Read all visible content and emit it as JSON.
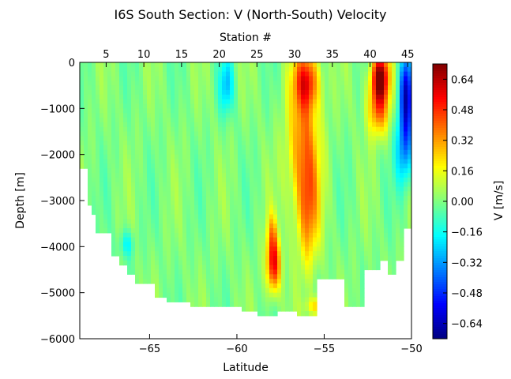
{
  "chart_data": {
    "type": "heatmap",
    "title": "I6S South Section: V (North-South) Velocity",
    "xlabel": "Latitude",
    "ylabel": "Depth [m]",
    "top_axis_label": "Station #",
    "colorbar_label": "V [m/s]",
    "xlim": [
      -69,
      -50
    ],
    "ylim": [
      -6000,
      0
    ],
    "x_ticks": [
      -65,
      -60,
      -55,
      -50
    ],
    "x_tick_labels": [
      "−65",
      "−60",
      "−55",
      "−50"
    ],
    "y_ticks": [
      0,
      -1000,
      -2000,
      -3000,
      -4000,
      -5000,
      -6000
    ],
    "y_tick_labels": [
      "0",
      "−1000",
      "−2000",
      "−3000",
      "−4000",
      "−5000",
      "−6000"
    ],
    "station_ticks": [
      5,
      10,
      15,
      20,
      25,
      30,
      35,
      40,
      45
    ],
    "station_tick_labels": [
      "5",
      "10",
      "15",
      "20",
      "25",
      "30",
      "35",
      "40",
      "45"
    ],
    "station_range": [
      1.5,
      45.5
    ],
    "colorbar_range": [
      -0.72,
      0.72
    ],
    "colorbar_ticks": [
      0.64,
      0.48,
      0.32,
      0.16,
      0.0,
      -0.16,
      -0.32,
      -0.48,
      -0.64
    ],
    "colorbar_tick_labels": [
      "0.64",
      "0.48",
      "0.32",
      "0.16",
      "0.00",
      "−0.16",
      "−0.32",
      "−0.48",
      "−0.64"
    ],
    "colormap": "jet",
    "background_value": 0.0,
    "bottom_depth_profile": {
      "lat": [
        -68.8,
        -68.6,
        -68.4,
        -68.1,
        -67.6,
        -67.2,
        -66.8,
        -66.3,
        -65.8,
        -65.2,
        -64.7,
        -64.0,
        -63.3,
        -62.6,
        -62.0,
        -61.2,
        -60.4,
        -59.8,
        -59.2,
        -58.8,
        -58.4,
        -58.0,
        -57.6,
        -57.0,
        -56.5,
        -56.0,
        -55.7,
        -55.5,
        -55.2,
        -54.8,
        -54.2,
        -53.8,
        -53.4,
        -52.8,
        -52.2,
        -51.8,
        -51.4,
        -51.0,
        -50.5,
        -50.2
      ],
      "depth": [
        -2300,
        -3100,
        -3300,
        -3650,
        -3650,
        -4200,
        -4350,
        -4550,
        -4800,
        -4800,
        -5100,
        -5150,
        -5200,
        -5250,
        -5300,
        -5300,
        -5250,
        -5350,
        -5400,
        -5500,
        -5450,
        -5450,
        -5400,
        -5400,
        -5450,
        -5500,
        -5500,
        -4700,
        -4700,
        -4700,
        -4700,
        -5250,
        -5300,
        -4500,
        -4500,
        -4300,
        -4550,
        -4300,
        -3600,
        -3600
      ]
    },
    "features": [
      {
        "lat": -56.2,
        "depth": -1800,
        "lat_width": 0.9,
        "depth_width": 1600,
        "value": 0.36
      },
      {
        "lat": -56.0,
        "depth": -400,
        "lat_width": 0.7,
        "depth_width": 600,
        "value": 0.42
      },
      {
        "lat": -55.9,
        "depth": -3300,
        "lat_width": 0.6,
        "depth_width": 1200,
        "value": 0.28
      },
      {
        "lat": -57.9,
        "depth": -4400,
        "lat_width": 0.4,
        "depth_width": 600,
        "value": 0.55
      },
      {
        "lat": -58.0,
        "depth": -3700,
        "lat_width": 0.3,
        "depth_width": 500,
        "value": 0.22
      },
      {
        "lat": -51.8,
        "depth": -300,
        "lat_width": 0.5,
        "depth_width": 500,
        "value": 0.68
      },
      {
        "lat": -51.9,
        "depth": -1000,
        "lat_width": 0.6,
        "depth_width": 600,
        "value": 0.4
      },
      {
        "lat": -50.3,
        "depth": -700,
        "lat_width": 0.4,
        "depth_width": 900,
        "value": -0.6
      },
      {
        "lat": -50.4,
        "depth": -1900,
        "lat_width": 0.5,
        "depth_width": 800,
        "value": -0.32
      },
      {
        "lat": -60.6,
        "depth": -500,
        "lat_width": 0.4,
        "depth_width": 600,
        "value": -0.25
      },
      {
        "lat": -66.3,
        "depth": -3950,
        "lat_width": 0.4,
        "depth_width": 300,
        "value": -0.18
      },
      {
        "lat": -55.4,
        "depth": -5300,
        "lat_width": 0.6,
        "depth_width": 200,
        "value": 0.25
      }
    ]
  }
}
